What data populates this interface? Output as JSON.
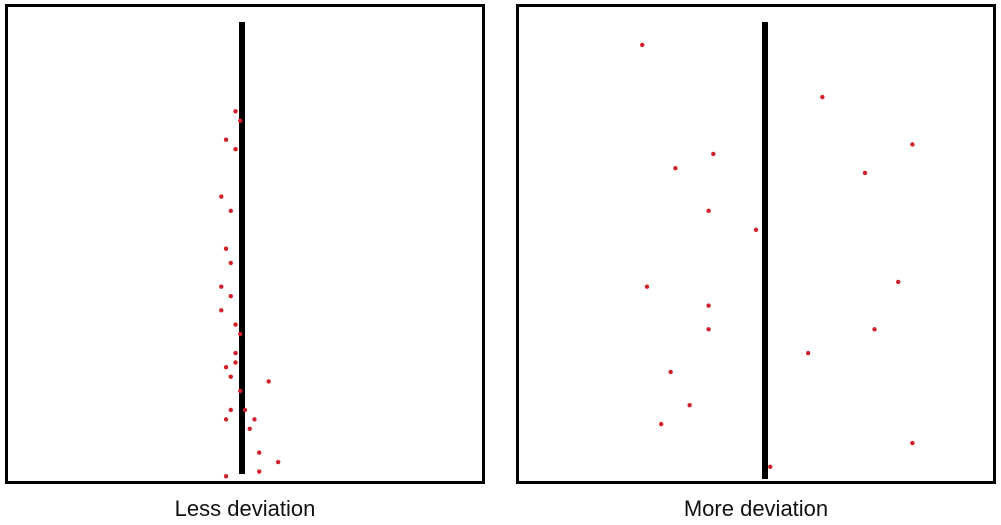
{
  "style": {
    "point_color": "#d0202a",
    "reference_line_color": "#000000"
  },
  "panels": [
    {
      "caption": "Less deviation",
      "points": [
        [
          0.48,
          0.78
        ],
        [
          0.49,
          0.76
        ],
        [
          0.46,
          0.72
        ],
        [
          0.48,
          0.7
        ],
        [
          0.45,
          0.6
        ],
        [
          0.47,
          0.57
        ],
        [
          0.46,
          0.49
        ],
        [
          0.47,
          0.46
        ],
        [
          0.45,
          0.41
        ],
        [
          0.47,
          0.39
        ],
        [
          0.45,
          0.36
        ],
        [
          0.48,
          0.33
        ],
        [
          0.49,
          0.31
        ],
        [
          0.48,
          0.27
        ],
        [
          0.48,
          0.25
        ],
        [
          0.46,
          0.24
        ],
        [
          0.47,
          0.22
        ],
        [
          0.55,
          0.21
        ],
        [
          0.49,
          0.19
        ],
        [
          0.5,
          0.15
        ],
        [
          0.47,
          0.15
        ],
        [
          0.46,
          0.13
        ],
        [
          0.52,
          0.13
        ],
        [
          0.51,
          0.11
        ],
        [
          0.53,
          0.06
        ],
        [
          0.57,
          0.04
        ],
        [
          0.53,
          0.02
        ],
        [
          0.46,
          0.01
        ]
      ]
    },
    {
      "caption": "More deviation",
      "points": [
        [
          0.26,
          0.92
        ],
        [
          0.64,
          0.81
        ],
        [
          0.41,
          0.69
        ],
        [
          0.33,
          0.66
        ],
        [
          0.83,
          0.71
        ],
        [
          0.73,
          0.65
        ],
        [
          0.4,
          0.57
        ],
        [
          0.5,
          0.53
        ],
        [
          0.27,
          0.41
        ],
        [
          0.4,
          0.37
        ],
        [
          0.8,
          0.42
        ],
        [
          0.4,
          0.32
        ],
        [
          0.75,
          0.32
        ],
        [
          0.61,
          0.27
        ],
        [
          0.32,
          0.23
        ],
        [
          0.36,
          0.16
        ],
        [
          0.3,
          0.12
        ],
        [
          0.83,
          0.08
        ],
        [
          0.53,
          0.03
        ]
      ]
    }
  ]
}
